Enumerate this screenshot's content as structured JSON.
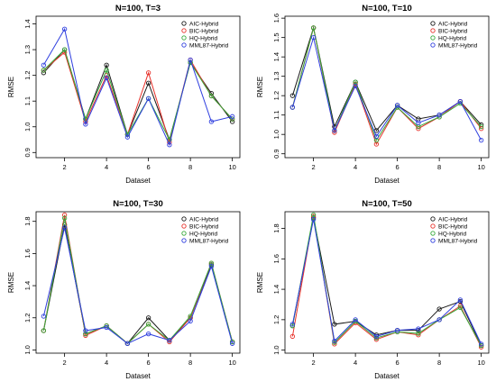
{
  "chart_data": [
    {
      "type": "line",
      "title": "N=100, T=3",
      "xlabel": "Dataset",
      "ylabel": "RMSE",
      "x": [
        1,
        2,
        3,
        4,
        5,
        6,
        7,
        8,
        9,
        10
      ],
      "xticks": [
        "2",
        "4",
        "6",
        "8",
        "10"
      ],
      "yticks": [
        "0.9",
        "1.0",
        "1.1",
        "1.2",
        "1.3",
        "1.4"
      ],
      "ylim": [
        0.88,
        1.43
      ],
      "legend_position": "top-right",
      "series": [
        {
          "name": "AIC-Hybrid",
          "color": "#1a1a1a",
          "values": [
            1.21,
            1.3,
            1.03,
            1.24,
            0.97,
            1.17,
            0.95,
            1.25,
            1.13,
            1.02
          ]
        },
        {
          "name": "BIC-Hybrid",
          "color": "#e8322b",
          "values": [
            1.22,
            1.29,
            1.02,
            1.2,
            0.97,
            1.21,
            0.94,
            1.26,
            1.12,
            1.03
          ]
        },
        {
          "name": "HQ-Hybrid",
          "color": "#36a93b",
          "values": [
            1.22,
            1.3,
            1.03,
            1.22,
            0.97,
            1.11,
            0.95,
            1.25,
            1.12,
            1.03
          ]
        },
        {
          "name": "MML87-Hybrid",
          "color": "#2f3fdf",
          "values": [
            1.24,
            1.38,
            1.01,
            1.19,
            0.96,
            1.11,
            0.93,
            1.26,
            1.02,
            1.04
          ]
        }
      ]
    },
    {
      "type": "line",
      "title": "N=100, T=10",
      "xlabel": "Dataset",
      "ylabel": "RMSE",
      "x": [
        1,
        2,
        3,
        4,
        5,
        6,
        7,
        8,
        9,
        10
      ],
      "xticks": [
        "2",
        "4",
        "6",
        "8",
        "10"
      ],
      "yticks": [
        "0.9",
        "1.0",
        "1.1",
        "1.2",
        "1.3",
        "1.4",
        "1.5",
        "1.6"
      ],
      "ylim": [
        0.88,
        1.61
      ],
      "legend_position": "top-right",
      "series": [
        {
          "name": "AIC-Hybrid",
          "color": "#1a1a1a",
          "values": [
            1.2,
            1.55,
            1.04,
            1.27,
            1.02,
            1.15,
            1.08,
            1.1,
            1.17,
            1.05
          ]
        },
        {
          "name": "BIC-Hybrid",
          "color": "#e8322b",
          "values": [
            1.14,
            1.55,
            1.01,
            1.26,
            0.95,
            1.14,
            1.03,
            1.09,
            1.17,
            1.03
          ]
        },
        {
          "name": "HQ-Hybrid",
          "color": "#36a93b",
          "values": [
            1.14,
            1.55,
            1.02,
            1.27,
            0.97,
            1.14,
            1.04,
            1.09,
            1.16,
            1.04
          ]
        },
        {
          "name": "MML87-Hybrid",
          "color": "#2f3fdf",
          "values": [
            1.14,
            1.5,
            1.02,
            1.25,
            0.99,
            1.15,
            1.06,
            1.1,
            1.17,
            0.97
          ]
        }
      ]
    },
    {
      "type": "line",
      "title": "N=100, T=30",
      "xlabel": "Dataset",
      "ylabel": "RMSE",
      "x": [
        1,
        2,
        3,
        4,
        5,
        6,
        7,
        8,
        9,
        10
      ],
      "xticks": [
        "2",
        "4",
        "6",
        "8",
        "10"
      ],
      "yticks": [
        "1.0",
        "1.2",
        "1.4",
        "1.6",
        "1.8"
      ],
      "ylim": [
        0.98,
        1.86
      ],
      "legend_position": "top-right",
      "series": [
        {
          "name": "AIC-Hybrid",
          "color": "#1a1a1a",
          "values": [
            1.12,
            1.78,
            1.1,
            1.15,
            1.04,
            1.2,
            1.06,
            1.2,
            1.53,
            1.05
          ]
        },
        {
          "name": "BIC-Hybrid",
          "color": "#e8322b",
          "values": [
            1.12,
            1.84,
            1.09,
            1.15,
            1.04,
            1.16,
            1.05,
            1.2,
            1.54,
            1.05
          ]
        },
        {
          "name": "HQ-Hybrid",
          "color": "#36a93b",
          "values": [
            1.12,
            1.82,
            1.1,
            1.15,
            1.04,
            1.16,
            1.06,
            1.21,
            1.54,
            1.05
          ]
        },
        {
          "name": "MML87-Hybrid",
          "color": "#2f3fdf",
          "values": [
            1.21,
            1.76,
            1.12,
            1.14,
            1.04,
            1.1,
            1.06,
            1.18,
            1.52,
            1.04
          ]
        }
      ]
    },
    {
      "type": "line",
      "title": "N=100, T=50",
      "xlabel": "Dataset",
      "ylabel": "RMSE",
      "x": [
        1,
        2,
        3,
        4,
        5,
        6,
        7,
        8,
        9,
        10
      ],
      "xticks": [
        "2",
        "4",
        "6",
        "8",
        "10"
      ],
      "yticks": [
        "1.0",
        "1.2",
        "1.4",
        "1.6",
        "1.8"
      ],
      "ylim": [
        0.98,
        1.91
      ],
      "legend_position": "top-right",
      "series": [
        {
          "name": "AIC-Hybrid",
          "color": "#1a1a1a",
          "values": [
            1.16,
            1.87,
            1.17,
            1.19,
            1.1,
            1.13,
            1.13,
            1.27,
            1.32,
            1.03
          ]
        },
        {
          "name": "BIC-Hybrid",
          "color": "#e8322b",
          "values": [
            1.09,
            1.88,
            1.04,
            1.18,
            1.07,
            1.12,
            1.1,
            1.2,
            1.29,
            1.02
          ]
        },
        {
          "name": "HQ-Hybrid",
          "color": "#36a93b",
          "values": [
            1.16,
            1.89,
            1.05,
            1.19,
            1.08,
            1.12,
            1.11,
            1.2,
            1.28,
            1.03
          ]
        },
        {
          "name": "MML87-Hybrid",
          "color": "#2f3fdf",
          "values": [
            1.17,
            1.86,
            1.06,
            1.2,
            1.09,
            1.13,
            1.14,
            1.2,
            1.33,
            1.04
          ]
        }
      ]
    }
  ]
}
